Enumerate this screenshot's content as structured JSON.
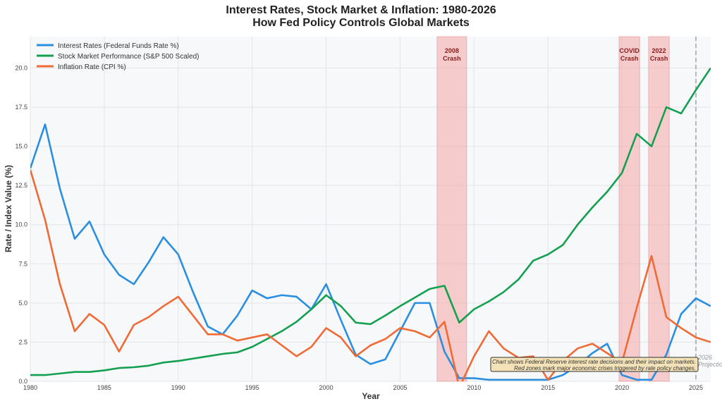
{
  "chart_data": {
    "type": "line",
    "title": "Interest Rates, Stock Market & Inflation: 1980-2026",
    "subtitle": "How Fed Policy Controls Global Markets",
    "xlabel": "Year",
    "ylabel": "Rate / Index Value (%)",
    "xlim": [
      1980,
      2026
    ],
    "ylim": [
      0,
      22
    ],
    "xticks": [
      1980,
      1985,
      1990,
      1995,
      2000,
      2005,
      2010,
      2015,
      2020,
      2025
    ],
    "yticks": [
      "0.0",
      "2.5",
      "5.0",
      "7.5",
      "10.0",
      "12.5",
      "15.0",
      "17.5",
      "20.0"
    ],
    "grid": true,
    "legend_position": "top-left",
    "x": [
      1980,
      1981,
      1982,
      1983,
      1984,
      1985,
      1986,
      1987,
      1988,
      1989,
      1990,
      1991,
      1992,
      1993,
      1994,
      1995,
      1996,
      1997,
      1998,
      1999,
      2000,
      2001,
      2002,
      2003,
      2004,
      2005,
      2006,
      2007,
      2008,
      2009,
      2010,
      2011,
      2012,
      2013,
      2014,
      2015,
      2016,
      2017,
      2018,
      2019,
      2020,
      2021,
      2022,
      2023,
      2024,
      2025,
      2026
    ],
    "series": [
      {
        "name": "Interest Rates (Federal Funds Rate %)",
        "color": "#2b8fe0",
        "values": [
          13.6,
          16.4,
          12.3,
          9.1,
          10.2,
          8.1,
          6.8,
          6.2,
          7.6,
          9.2,
          8.1,
          5.7,
          3.5,
          3.0,
          4.2,
          5.8,
          5.3,
          5.5,
          5.4,
          4.6,
          6.2,
          3.9,
          1.7,
          1.1,
          1.4,
          3.2,
          5.0,
          5.0,
          1.9,
          0.2,
          0.2,
          0.1,
          0.1,
          0.1,
          0.1,
          0.1,
          0.4,
          1.0,
          1.8,
          2.4,
          0.4,
          0.1,
          0.1,
          1.7,
          4.3,
          5.3,
          4.8
        ]
      },
      {
        "name": "Stock Market Performance (S&P 500 Scaled)",
        "color": "#14a050",
        "values": [
          0.4,
          0.4,
          0.5,
          0.6,
          0.6,
          0.7,
          0.85,
          0.9,
          1.0,
          1.2,
          1.3,
          1.45,
          1.6,
          1.75,
          1.85,
          2.2,
          2.7,
          3.2,
          3.8,
          4.6,
          5.5,
          4.8,
          3.75,
          3.65,
          4.2,
          4.8,
          5.35,
          5.9,
          6.1,
          3.75,
          4.6,
          5.1,
          5.7,
          6.5,
          7.7,
          8.1,
          8.7,
          10.0,
          11.1,
          12.1,
          13.3,
          15.8,
          15.0,
          17.5,
          17.1,
          18.6,
          20.0
        ]
      },
      {
        "name": "Inflation Rate (CPI %)",
        "color": "#f06a35",
        "values": [
          13.5,
          10.3,
          6.2,
          3.2,
          4.3,
          3.6,
          1.9,
          3.6,
          4.1,
          4.8,
          5.4,
          4.2,
          3.0,
          3.0,
          2.6,
          2.8,
          3.0,
          2.3,
          1.6,
          2.2,
          3.4,
          2.8,
          1.6,
          2.3,
          2.7,
          3.4,
          3.2,
          2.8,
          3.8,
          -0.4,
          1.6,
          3.2,
          2.1,
          1.5,
          1.6,
          0.1,
          1.3,
          2.1,
          2.4,
          1.8,
          1.2,
          4.7,
          8.0,
          4.1,
          3.4,
          2.8,
          2.5
        ]
      }
    ],
    "shaded_regions": [
      {
        "from": 2007.5,
        "to": 2009.5,
        "label_line1": "2008",
        "label_line2": "Crash"
      },
      {
        "from": 2019.8,
        "to": 2021.2,
        "label_line1": "COVID",
        "label_line2": "Crash"
      },
      {
        "from": 2021.8,
        "to": 2023.2,
        "label_line1": "2022",
        "label_line2": "Crash"
      }
    ],
    "shade_color": "#f4a6a6",
    "projection_line": {
      "x": 2025,
      "label_line1": "2026",
      "label_line2": "Projection"
    },
    "annotation": {
      "line1": "Chart shows Federal Reserve interest rate decisions and their impact on markets.",
      "line2": "Red zones mark major economic crises triggered by rate policy changes."
    }
  }
}
